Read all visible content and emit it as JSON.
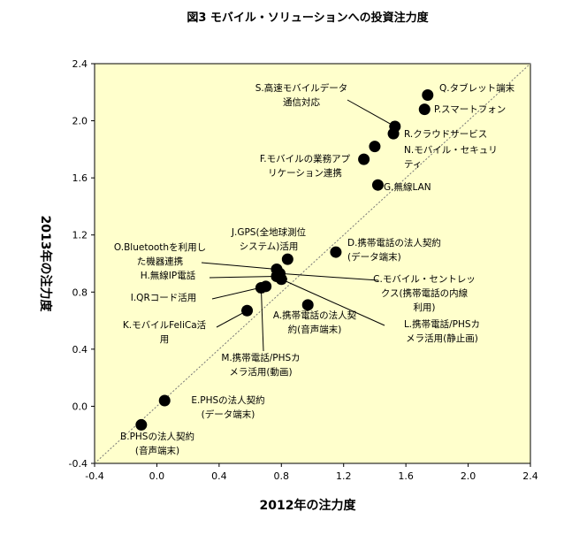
{
  "chart_data": {
    "type": "scatter",
    "title": "図3  モバイル・ソリューションへの投資注力度",
    "xlabel": "2012年の注力度",
    "ylabel": "2013年の注力度",
    "xlim": [
      -0.4,
      2.4
    ],
    "ylim": [
      -0.4,
      2.4
    ],
    "xticks": [
      "-0.4",
      "0.0",
      "0.4",
      "0.8",
      "1.2",
      "1.6",
      "2.0",
      "2.4"
    ],
    "yticks": [
      "-0.4",
      "0.0",
      "0.4",
      "0.8",
      "1.2",
      "1.6",
      "2.0",
      "2.4"
    ],
    "diagonal_line": true,
    "grid": false,
    "points": [
      {
        "id": "Q",
        "x": 1.74,
        "y": 2.18,
        "label": [
          "Q.タブレット端末"
        ]
      },
      {
        "id": "P",
        "x": 1.72,
        "y": 2.08,
        "label": [
          "P.スマートフォン"
        ]
      },
      {
        "id": "S",
        "x": 1.53,
        "y": 1.96,
        "label": [
          "S.高速モバイルデータ",
          "通信対応"
        ]
      },
      {
        "id": "R",
        "x": 1.52,
        "y": 1.91,
        "label": [
          "R.クラウドサービス"
        ]
      },
      {
        "id": "N",
        "x": 1.4,
        "y": 1.82,
        "label": [
          "N.モバイル・セキュリ",
          "ティ"
        ]
      },
      {
        "id": "F",
        "x": 1.33,
        "y": 1.73,
        "label": [
          "F.モバイルの業務アプ",
          "リケーション連携"
        ]
      },
      {
        "id": "G",
        "x": 1.42,
        "y": 1.55,
        "label": [
          "G.無線LAN"
        ]
      },
      {
        "id": "D",
        "x": 1.15,
        "y": 1.08,
        "label": [
          "D.携帯電話の法人契約",
          "(データ端末)"
        ]
      },
      {
        "id": "J",
        "x": 0.84,
        "y": 1.03,
        "label": [
          "J.GPS(全地球測位",
          "システム)活用"
        ]
      },
      {
        "id": "O",
        "x": 0.77,
        "y": 0.96,
        "label": [
          "O.Bluetoothを利用し",
          "た機器連携"
        ]
      },
      {
        "id": "C",
        "x": 0.79,
        "y": 0.93,
        "label": [
          "C.モバイル・セントレッ",
          "クス(携帯電話の内線",
          "利用)"
        ]
      },
      {
        "id": "H",
        "x": 0.77,
        "y": 0.91,
        "label": [
          "H.無線IP電話"
        ]
      },
      {
        "id": "L",
        "x": 0.8,
        "y": 0.89,
        "label": [
          "L.携帯電話/PHSカ",
          "メラ活用(静止画)"
        ]
      },
      {
        "id": "I",
        "x": 0.7,
        "y": 0.84,
        "label": [
          "I.QRコード活用"
        ]
      },
      {
        "id": "M",
        "x": 0.67,
        "y": 0.83,
        "label": [
          "M.携帯電話/PHSカ",
          "メラ活用(動画)"
        ]
      },
      {
        "id": "A",
        "x": 0.97,
        "y": 0.71,
        "label": [
          "A.携帯電話の法人契",
          "約(音声端末)"
        ]
      },
      {
        "id": "K",
        "x": 0.58,
        "y": 0.67,
        "label": [
          "K.モバイルFeliCa活",
          "用"
        ]
      },
      {
        "id": "E",
        "x": 0.05,
        "y": 0.04,
        "label": [
          "E.PHSの法人契約",
          "(データ端末)"
        ]
      },
      {
        "id": "B",
        "x": -0.1,
        "y": -0.13,
        "label": [
          "B.PHSの法人契約",
          "(音声端末)"
        ]
      }
    ]
  }
}
